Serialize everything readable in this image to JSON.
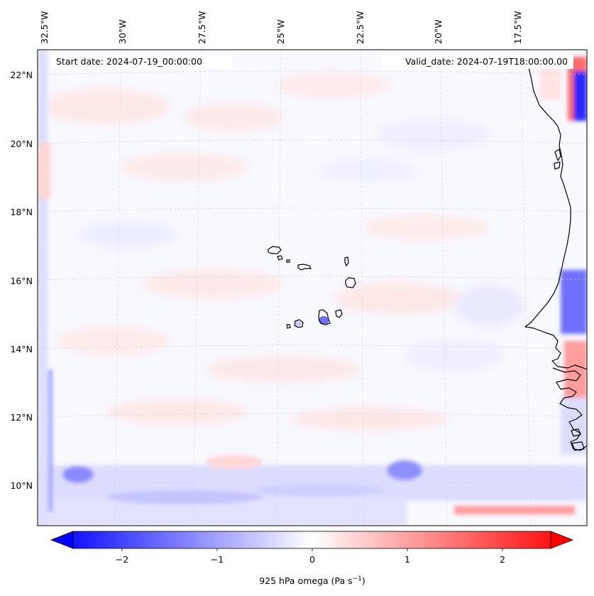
{
  "map": {
    "start_label": "Start date: 2024-07-19_00:00:00",
    "valid_label": "Valid_date: 2024-07-19T18:00:00.00",
    "lon_labels": [
      "32.5°W",
      "30°W",
      "27.5°W",
      "25°W",
      "22.5°W",
      "20°W",
      "17.5°W"
    ],
    "lat_labels": [
      "22°N",
      "20°N",
      "18°N",
      "16°N",
      "14°N",
      "12°N",
      "10°N"
    ],
    "field": "925 hPa omega",
    "colormap": "bwr",
    "gridlines": "dashed light gray",
    "coastline_color": "#000000"
  },
  "colorbar": {
    "ticks": [
      "−2",
      "−1",
      "0",
      "1",
      "2"
    ],
    "label_main": "925 hPa omega (Pa s",
    "label_exp": "−1",
    "label_close": ")",
    "min_color": "#0000ff",
    "mid_color": "#ffffff",
    "max_color": "#ff0000",
    "extend": "both"
  }
}
